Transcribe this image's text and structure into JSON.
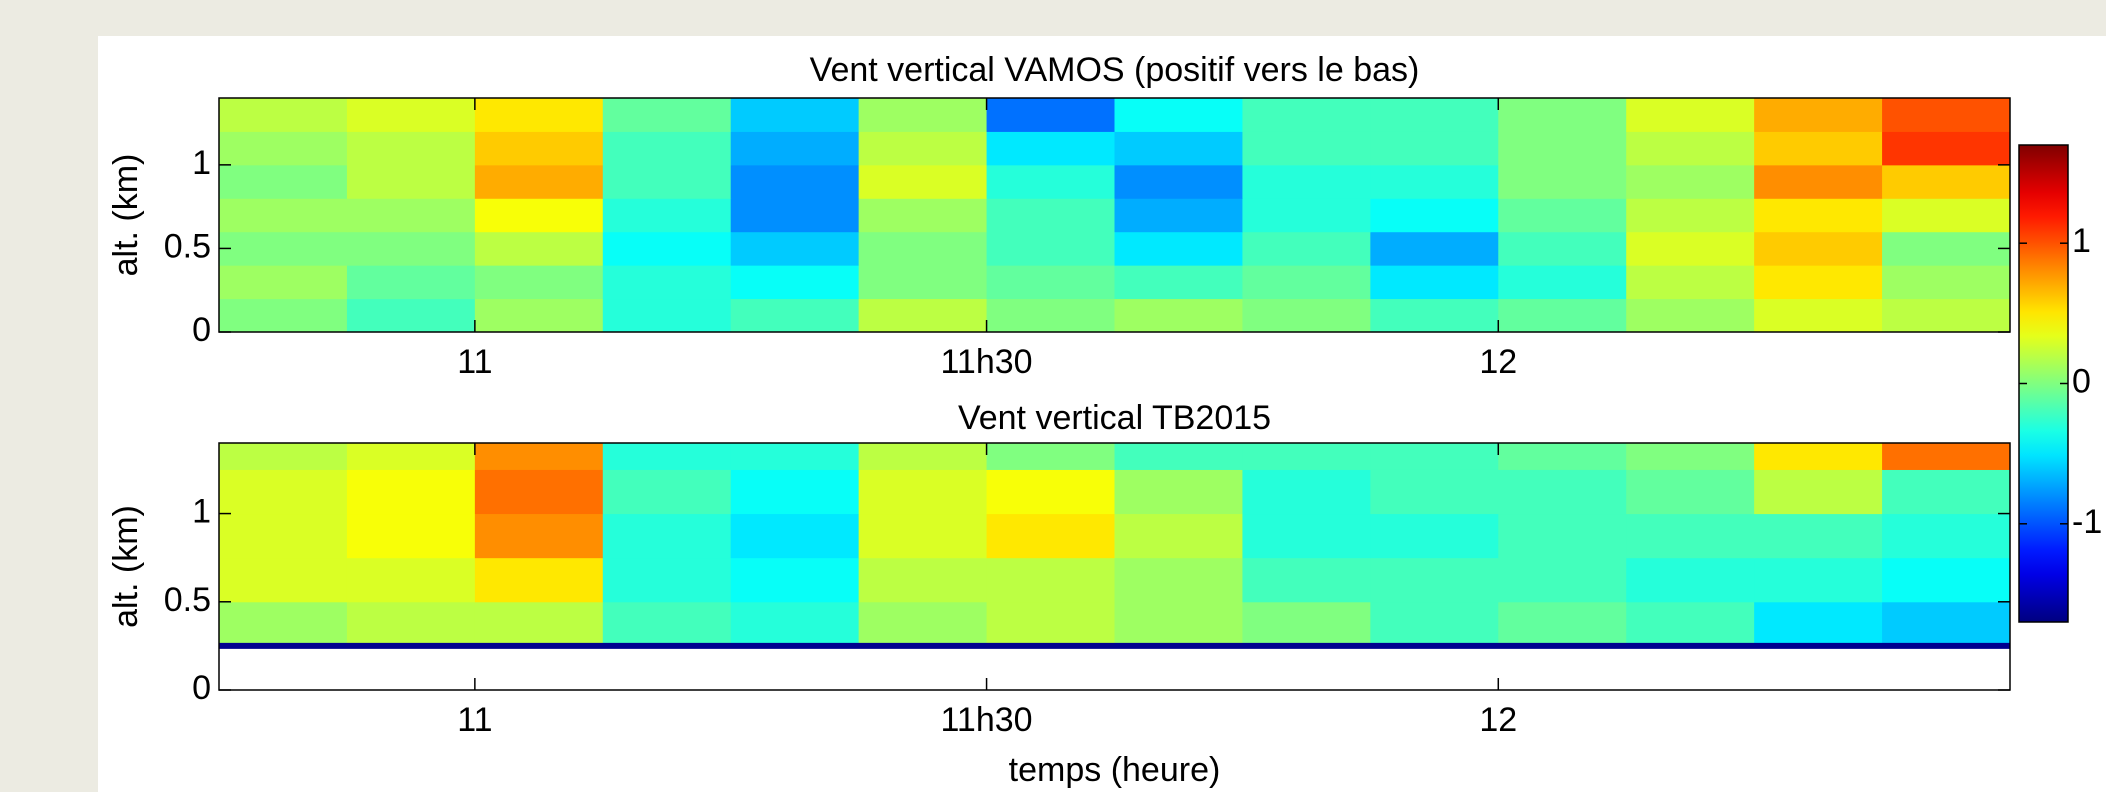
{
  "chart_data": [
    {
      "type": "heatmap",
      "title": "Vent vertical VAMOS (positif vers le bas)",
      "ylabel": "alt. (km)",
      "xbins": [
        10.75,
        10.875,
        11,
        11.125,
        11.25,
        11.375,
        11.5,
        11.625,
        11.75,
        11.875,
        12,
        12.125,
        12.25,
        12.375,
        12.5
      ],
      "ybins": [
        0,
        0.2,
        0.4,
        0.6,
        0.8,
        1,
        1.2,
        1.4
      ],
      "values": [
        [
          0,
          -0.2,
          0.1,
          -0.3,
          -0.2,
          0.2,
          0,
          0.1,
          0,
          -0.2,
          -0.1,
          0.1,
          0.3,
          0.2
        ],
        [
          0.1,
          -0.1,
          0,
          -0.3,
          -0.4,
          0,
          -0.1,
          -0.2,
          -0.1,
          -0.5,
          -0.3,
          0.2,
          0.5,
          0.1
        ],
        [
          0,
          0,
          0.2,
          -0.4,
          -0.6,
          0,
          -0.2,
          -0.5,
          -0.2,
          -0.7,
          -0.2,
          0.3,
          0.6,
          0
        ],
        [
          0.1,
          0.1,
          0.4,
          -0.3,
          -0.8,
          0.1,
          -0.2,
          -0.7,
          -0.3,
          -0.4,
          -0.1,
          0.2,
          0.5,
          0.3
        ],
        [
          0,
          0.2,
          0.7,
          -0.2,
          -0.8,
          0.3,
          -0.3,
          -0.8,
          -0.3,
          -0.3,
          0,
          0.1,
          0.8,
          0.6
        ],
        [
          0.1,
          0.2,
          0.6,
          -0.2,
          -0.7,
          0.2,
          -0.5,
          -0.6,
          -0.2,
          -0.2,
          0,
          0.2,
          0.6,
          1.1
        ],
        [
          0.2,
          0.3,
          0.5,
          -0.1,
          -0.6,
          0.1,
          -0.9,
          -0.4,
          -0.2,
          -0.2,
          0,
          0.3,
          0.7,
          1.0
        ]
      ],
      "xlim": [
        10.75,
        12.5
      ],
      "xticks": [
        11,
        {
          "value": 11.5,
          "label": "11h30"
        },
        12
      ],
      "ylim": [
        0,
        1.4
      ],
      "yticks": [
        0,
        0.5,
        1
      ]
    },
    {
      "type": "heatmap",
      "title": "Vent vertical TB2015",
      "ylabel": "alt. (km)",
      "xlabel": "temps (heure)",
      "xbins": [
        10.75,
        10.875,
        11,
        11.125,
        11.25,
        11.375,
        11.5,
        11.625,
        11.75,
        11.875,
        12,
        12.125,
        12.25,
        12.375,
        12.5
      ],
      "ybins": [
        0.25,
        0.5,
        0.75,
        1,
        1.25,
        1.4
      ],
      "values": [
        [
          0.1,
          0.2,
          0.2,
          -0.2,
          -0.3,
          0.1,
          0.2,
          0.1,
          0,
          -0.2,
          -0.1,
          -0.2,
          -0.5,
          -0.6
        ],
        [
          0.3,
          0.3,
          0.5,
          -0.3,
          -0.4,
          0.2,
          0.2,
          0.1,
          -0.2,
          -0.2,
          -0.2,
          -0.3,
          -0.3,
          -0.4
        ],
        [
          0.3,
          0.4,
          0.8,
          -0.3,
          -0.5,
          0.3,
          0.5,
          0.2,
          -0.3,
          -0.3,
          -0.2,
          -0.2,
          -0.2,
          -0.3
        ],
        [
          0.3,
          0.4,
          0.9,
          -0.2,
          -0.4,
          0.3,
          0.4,
          0.1,
          -0.3,
          -0.2,
          -0.2,
          -0.1,
          0.2,
          -0.2
        ],
        [
          0.2,
          0.3,
          0.8,
          -0.3,
          -0.3,
          0.2,
          0,
          -0.2,
          -0.2,
          -0.2,
          -0.1,
          0,
          0.5,
          0.9
        ],
        [
          0.2,
          0.3,
          0.9,
          -0.3,
          -0.2,
          0.2,
          -0.4,
          0.1,
          -0.2,
          -0.1,
          -0.1,
          0,
          0.3,
          1.1
        ]
      ],
      "xlim": [
        10.75,
        12.5
      ],
      "xticks": [
        11,
        {
          "value": 11.5,
          "label": "11h30"
        },
        12
      ],
      "ylim": [
        0,
        1.4
      ],
      "yticks": [
        0,
        0.5,
        1
      ]
    }
  ],
  "colorbar": {
    "colormap": "jet",
    "lim": [
      -1.7,
      1.7
    ],
    "ticks": [
      -1,
      0,
      1
    ]
  }
}
